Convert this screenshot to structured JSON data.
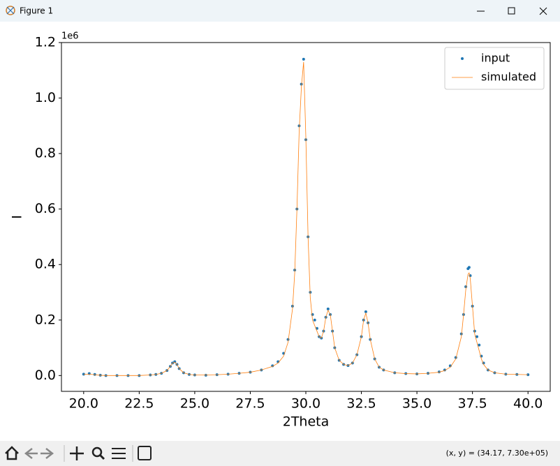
{
  "window": {
    "title": "Figure 1",
    "status": "(x, y) = (34.17, 7.30e+05)"
  },
  "chart_data": {
    "type": "line",
    "offset_label": "1e6",
    "x_label": "2Theta",
    "y_label": "I",
    "xlim": [
      19,
      41
    ],
    "ylim": [
      -0.057,
      1.2
    ],
    "xticks": [
      {
        "value": 20,
        "label": "20.0"
      },
      22.5,
      {
        "value": 25,
        "label": "25.0"
      },
      27.5,
      {
        "value": 30,
        "label": "30.0"
      },
      32.5,
      {
        "value": 35,
        "label": "35.0"
      },
      37.5,
      {
        "value": 40,
        "label": "40.0"
      }
    ],
    "yticks": [
      {
        "value": 0,
        "label": "0.0"
      },
      0.2,
      0.4,
      0.6,
      0.8,
      {
        "value": 1,
        "label": "1.0"
      },
      1.2
    ],
    "legend": "upper right",
    "grid": false,
    "x": [
      20.0,
      20.25,
      20.5,
      20.75,
      21,
      21.5,
      22,
      22.5,
      23,
      23.25,
      23.5,
      23.75,
      23.9,
      24.0,
      24.1,
      24.2,
      24.3,
      24.5,
      24.75,
      25,
      25.5,
      26,
      26.5,
      27,
      27.5,
      28,
      28.5,
      28.75,
      29,
      29.2,
      29.4,
      29.5,
      29.6,
      29.7,
      29.8,
      29.9,
      30.0,
      30.1,
      30.2,
      30.3,
      30.4,
      30.5,
      30.6,
      30.7,
      30.8,
      30.9,
      31.0,
      31.1,
      31.2,
      31.3,
      31.5,
      31.7,
      31.9,
      32.1,
      32.3,
      32.5,
      32.6,
      32.7,
      32.8,
      32.9,
      33.1,
      33.3,
      33.5,
      34,
      34.5,
      35,
      35.5,
      36,
      36.25,
      36.5,
      36.75,
      37.0,
      37.1,
      37.2,
      37.3,
      37.35,
      37.4,
      37.5,
      37.6,
      37.7,
      37.8,
      37.9,
      38.0,
      38.2,
      38.5,
      39,
      39.5,
      40
    ],
    "series": [
      {
        "name": "input",
        "color": "#1f77b4",
        "style": "points",
        "values": [
          0.005,
          0.007,
          0.004,
          0.001,
          0,
          0,
          0,
          0,
          0.002,
          0.004,
          0.008,
          0.018,
          0.033,
          0.045,
          0.05,
          0.04,
          0.025,
          0.01,
          0.004,
          0.002,
          0.001,
          0.003,
          0.005,
          0.008,
          0.012,
          0.02,
          0.035,
          0.05,
          0.08,
          0.13,
          0.25,
          0.38,
          0.6,
          0.9,
          1.05,
          1.14,
          0.85,
          0.5,
          0.3,
          0.22,
          0.2,
          0.17,
          0.14,
          0.135,
          0.16,
          0.21,
          0.24,
          0.22,
          0.16,
          0.1,
          0.055,
          0.04,
          0.036,
          0.045,
          0.075,
          0.14,
          0.2,
          0.23,
          0.19,
          0.13,
          0.06,
          0.03,
          0.02,
          0.01,
          0.007,
          0.006,
          0.008,
          0.013,
          0.02,
          0.035,
          0.065,
          0.15,
          0.22,
          0.32,
          0.385,
          0.39,
          0.36,
          0.25,
          0.16,
          0.14,
          0.11,
          0.07,
          0.045,
          0.02,
          0.01,
          0.005,
          0.004,
          0.003
        ]
      },
      {
        "name": "simulated",
        "color": "#ff7f0e",
        "style": "line",
        "values": [
          0.004,
          0.005,
          0.003,
          0.001,
          0,
          0,
          0,
          0,
          0.002,
          0.004,
          0.008,
          0.018,
          0.033,
          0.045,
          0.048,
          0.04,
          0.025,
          0.01,
          0.004,
          0.002,
          0.002,
          0.003,
          0.005,
          0.008,
          0.012,
          0.02,
          0.033,
          0.045,
          0.07,
          0.12,
          0.24,
          0.37,
          0.6,
          0.88,
          1.04,
          1.13,
          0.86,
          0.5,
          0.28,
          0.2,
          0.18,
          0.16,
          0.14,
          0.135,
          0.16,
          0.21,
          0.235,
          0.22,
          0.16,
          0.1,
          0.055,
          0.04,
          0.036,
          0.045,
          0.075,
          0.14,
          0.2,
          0.225,
          0.19,
          0.13,
          0.06,
          0.03,
          0.02,
          0.01,
          0.007,
          0.006,
          0.008,
          0.012,
          0.018,
          0.03,
          0.06,
          0.14,
          0.22,
          0.31,
          0.365,
          0.37,
          0.35,
          0.25,
          0.15,
          0.12,
          0.09,
          0.06,
          0.04,
          0.02,
          0.01,
          0.005,
          0.004,
          0.003
        ]
      }
    ]
  }
}
